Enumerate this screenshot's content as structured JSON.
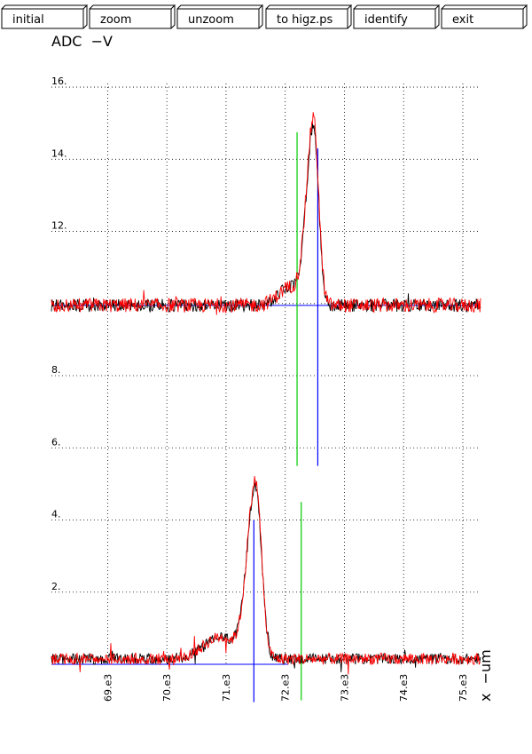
{
  "toolbar": {
    "buttons": [
      {
        "label": "initial"
      },
      {
        "label": "zoom"
      },
      {
        "label": "unzoom"
      },
      {
        "label": "to higz.ps"
      },
      {
        "label": "identify"
      },
      {
        "label": "exit"
      }
    ]
  },
  "chart_data": {
    "type": "line",
    "title": "",
    "ylabel": "ADC  −V",
    "xlabel": "x  −um",
    "xlim": [
      68.05,
      75.3
    ],
    "ylim": [
      0,
      16.1
    ],
    "x_ticks": [
      {
        "value": 69.0,
        "label": "69.e3"
      },
      {
        "value": 70.0,
        "label": "70.e3"
      },
      {
        "value": 71.0,
        "label": "71.e3"
      },
      {
        "value": 72.0,
        "label": "72.e3"
      },
      {
        "value": 73.0,
        "label": "73.e3"
      },
      {
        "value": 74.0,
        "label": "74.e3"
      },
      {
        "value": 75.0,
        "label": "75.e3"
      }
    ],
    "y_ticks": [
      {
        "value": 2,
        "label": "2."
      },
      {
        "value": 4,
        "label": "4."
      },
      {
        "value": 6,
        "label": "6."
      },
      {
        "value": 8,
        "label": "8."
      },
      {
        "value": 10,
        "label": ""
      },
      {
        "value": 12,
        "label": "12."
      },
      {
        "value": 14,
        "label": "14."
      },
      {
        "value": 16,
        "label": "16."
      }
    ],
    "grid": true,
    "colors": {
      "trace_a": "#000000",
      "trace_b": "#ff0000",
      "marker": "#00cc00",
      "baseline": "#0000ff"
    },
    "series": [
      {
        "color": "#000000",
        "baseline": 9.95,
        "peak_x": 72.48,
        "peak_height": 4.9,
        "width_left": 0.17,
        "width_right": 0.12,
        "noise": 0.18,
        "shoulder": {
          "x": 72.1,
          "height": 0.5,
          "width": 0.3
        }
      },
      {
        "color": "#ff0000",
        "baseline": 9.95,
        "peak_x": 72.48,
        "peak_height": 5.1,
        "width_left": 0.17,
        "width_right": 0.12,
        "noise": 0.2,
        "shoulder": {
          "x": 72.1,
          "height": 0.5,
          "width": 0.3
        }
      },
      {
        "color": "#000000",
        "baseline": 0.15,
        "peak_x": 71.5,
        "peak_height": 4.8,
        "width_left": 0.2,
        "width_right": 0.14,
        "noise": 0.15,
        "shoulder": {
          "x": 70.9,
          "height": 0.6,
          "width": 0.4
        }
      },
      {
        "color": "#ff0000",
        "baseline": 0.15,
        "peak_x": 71.5,
        "peak_height": 4.9,
        "width_left": 0.2,
        "width_right": 0.14,
        "noise": 0.16,
        "shoulder": {
          "x": 70.9,
          "height": 0.6,
          "width": 0.4
        }
      }
    ],
    "baselines": [
      {
        "y": 9.95,
        "x_start": 68.05,
        "x_end": 75.3
      },
      {
        "y": 0.0,
        "x_start": 68.05,
        "x_end": 72.05
      }
    ],
    "markers": [
      {
        "color": "#00cc00",
        "x": 72.2,
        "y_start": 5.5,
        "y_end": 14.75
      },
      {
        "color": "#0000ff",
        "x": 72.55,
        "y_start": 5.5,
        "y_end": 9.95
      },
      {
        "color": "#0000ff",
        "x": 72.55,
        "y_start": 9.95,
        "y_end": 14.3
      },
      {
        "color": "#00cc00",
        "x": 72.27,
        "y_start": -1.0,
        "y_end": 4.5
      },
      {
        "color": "#0000ff",
        "x": 71.47,
        "y_start": -1.05,
        "y_end": 4.0
      }
    ]
  }
}
